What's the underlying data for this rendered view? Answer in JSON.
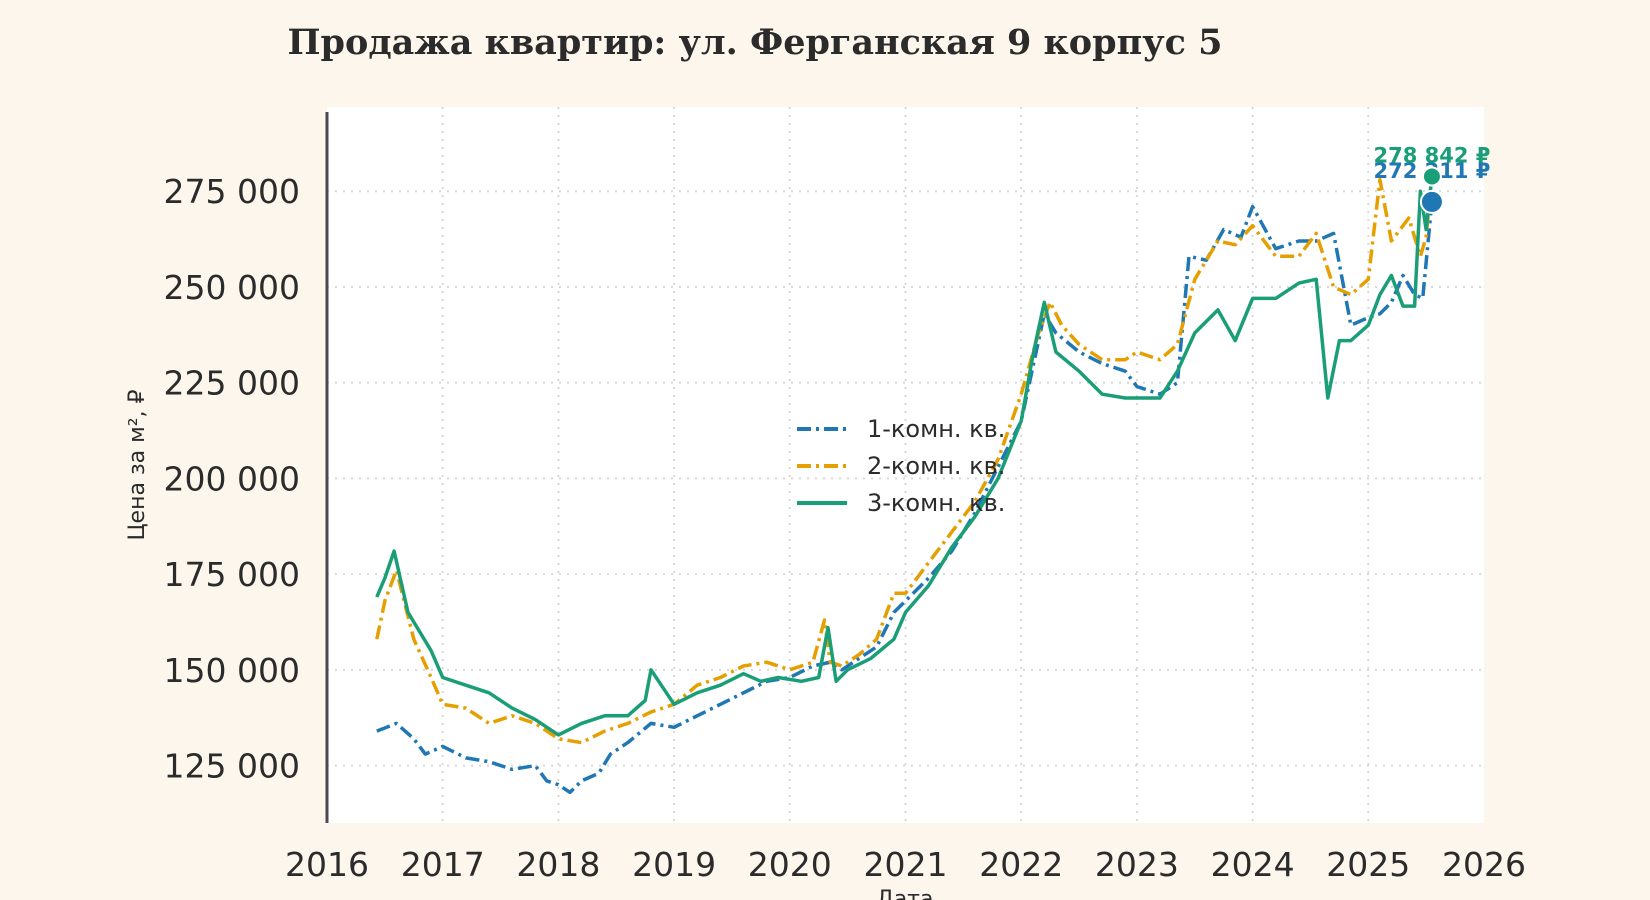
{
  "chart_data": {
    "type": "line",
    "title": "Продажа квартир: ул. Ферганская 9 корпус 5",
    "xlabel": "Дата",
    "ylabel": "Цена за м², ₽",
    "xlim": [
      2016,
      2026
    ],
    "ylim": [
      110000,
      297000
    ],
    "x_ticks": [
      "2016",
      "2017",
      "2018",
      "2019",
      "2020",
      "2021",
      "2022",
      "2023",
      "2024",
      "2025",
      "2026"
    ],
    "y_ticks": [
      "125 000",
      "150 000",
      "175 000",
      "200 000",
      "225 000",
      "250 000",
      "275 000"
    ],
    "y_tick_values": [
      125000,
      150000,
      175000,
      200000,
      225000,
      250000,
      275000
    ],
    "grid": true,
    "legend_position": "center",
    "series": [
      {
        "name": "1-комн. кв.",
        "color": "#1f77b4",
        "dash": "dashdot",
        "end_label": "272 211 ₽",
        "x": [
          2016.43,
          2016.6,
          2016.75,
          2016.85,
          2017.0,
          2017.2,
          2017.4,
          2017.6,
          2017.8,
          2017.9,
          2018.0,
          2018.1,
          2018.2,
          2018.35,
          2018.45,
          2018.6,
          2018.8,
          2019.0,
          2019.2,
          2019.4,
          2019.6,
          2019.8,
          2020.0,
          2020.2,
          2020.35,
          2020.45,
          2020.6,
          2020.75,
          2020.9,
          2021.0,
          2021.2,
          2021.4,
          2021.6,
          2021.8,
          2022.0,
          2022.15,
          2022.2,
          2022.3,
          2022.5,
          2022.7,
          2022.9,
          2023.0,
          2023.2,
          2023.35,
          2023.45,
          2023.6,
          2023.75,
          2023.9,
          2024.0,
          2024.2,
          2024.4,
          2024.55,
          2024.7,
          2024.85,
          2025.0,
          2025.1,
          2025.2,
          2025.3,
          2025.4,
          2025.47,
          2025.55
        ],
        "y": [
          134000,
          136000,
          132000,
          128000,
          130000,
          127000,
          126000,
          124000,
          125000,
          121000,
          120000,
          118000,
          121000,
          123000,
          128000,
          131000,
          136000,
          135000,
          138000,
          141000,
          144000,
          147000,
          148000,
          151000,
          152000,
          150000,
          153000,
          156000,
          165000,
          168000,
          174000,
          181000,
          191000,
          203000,
          215000,
          236000,
          243000,
          238000,
          233000,
          230000,
          228000,
          224000,
          222000,
          225000,
          258000,
          257000,
          265000,
          263000,
          271000,
          260000,
          262000,
          262000,
          264000,
          240000,
          242000,
          243000,
          246000,
          253000,
          248000,
          247000,
          272211
        ]
      },
      {
        "name": "2-комн. кв.",
        "color": "#e69f00",
        "dash": "dashdot",
        "end_label": "",
        "x": [
          2016.43,
          2016.5,
          2016.6,
          2016.75,
          2016.9,
          2017.0,
          2017.2,
          2017.4,
          2017.6,
          2017.8,
          2018.0,
          2018.2,
          2018.4,
          2018.6,
          2018.8,
          2019.0,
          2019.2,
          2019.4,
          2019.6,
          2019.8,
          2020.0,
          2020.2,
          2020.3,
          2020.35,
          2020.45,
          2020.6,
          2020.75,
          2020.9,
          2021.0,
          2021.2,
          2021.4,
          2021.6,
          2021.8,
          2022.0,
          2022.15,
          2022.25,
          2022.35,
          2022.5,
          2022.7,
          2022.9,
          2023.0,
          2023.2,
          2023.35,
          2023.5,
          2023.7,
          2023.85,
          2024.0,
          2024.2,
          2024.4,
          2024.55,
          2024.7,
          2024.85,
          2025.0,
          2025.1,
          2025.2,
          2025.35,
          2025.45,
          2025.5,
          2025.55
        ],
        "y": [
          158000,
          168000,
          176000,
          158000,
          148000,
          141000,
          140000,
          136000,
          138000,
          136000,
          132000,
          131000,
          134000,
          136000,
          139000,
          141000,
          146000,
          148000,
          151000,
          152000,
          150000,
          152000,
          163000,
          152000,
          151000,
          154000,
          158000,
          170000,
          170000,
          178000,
          186000,
          194000,
          205000,
          222000,
          238000,
          246000,
          240000,
          235000,
          231000,
          231000,
          233000,
          231000,
          235000,
          252000,
          262000,
          261000,
          266000,
          258000,
          258000,
          264000,
          250000,
          248000,
          252000,
          278000,
          262000,
          268000,
          258000,
          263000,
          278842
        ]
      },
      {
        "name": "3-комн. кв.",
        "color": "#1a9e77",
        "dash": "solid",
        "end_label": "278 842 ₽",
        "x": [
          2016.43,
          2016.5,
          2016.58,
          2016.7,
          2016.8,
          2016.9,
          2017.0,
          2017.2,
          2017.4,
          2017.6,
          2017.8,
          2018.0,
          2018.2,
          2018.4,
          2018.6,
          2018.75,
          2018.8,
          2019.0,
          2019.2,
          2019.4,
          2019.6,
          2019.75,
          2019.9,
          2020.1,
          2020.25,
          2020.33,
          2020.4,
          2020.5,
          2020.7,
          2020.9,
          2021.0,
          2021.2,
          2021.4,
          2021.6,
          2021.8,
          2022.0,
          2022.1,
          2022.2,
          2022.3,
          2022.5,
          2022.7,
          2022.9,
          2023.0,
          2023.2,
          2023.35,
          2023.5,
          2023.7,
          2023.85,
          2024.0,
          2024.2,
          2024.4,
          2024.55,
          2024.65,
          2024.75,
          2024.85,
          2025.0,
          2025.1,
          2025.2,
          2025.3,
          2025.4,
          2025.45,
          2025.5,
          2025.55
        ],
        "y": [
          169000,
          174000,
          181000,
          165000,
          160000,
          155000,
          148000,
          146000,
          144000,
          140000,
          137000,
          133000,
          136000,
          138000,
          138000,
          142000,
          150000,
          141000,
          144000,
          146000,
          149000,
          147000,
          148000,
          147000,
          148000,
          161000,
          147000,
          150000,
          153000,
          158000,
          165000,
          172000,
          182000,
          190000,
          200000,
          215000,
          232000,
          246000,
          233000,
          228000,
          222000,
          221000,
          221000,
          221000,
          228000,
          238000,
          244000,
          236000,
          247000,
          247000,
          251000,
          252000,
          221000,
          236000,
          236000,
          240000,
          248000,
          253000,
          245000,
          245000,
          275000,
          265000,
          278842
        ]
      }
    ]
  }
}
